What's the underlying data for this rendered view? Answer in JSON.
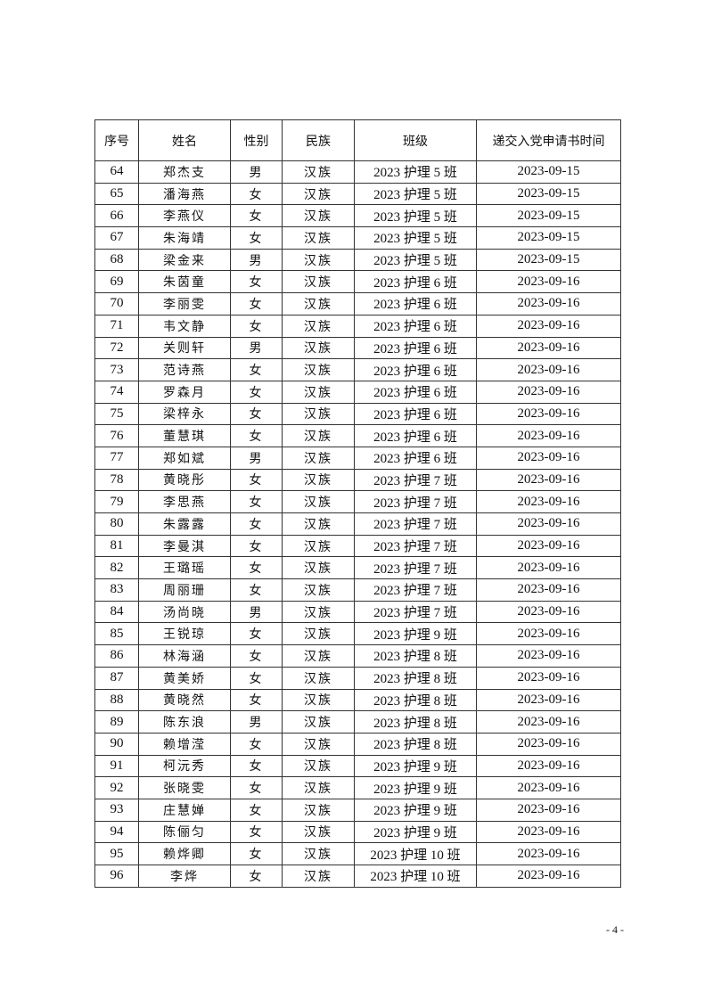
{
  "table": {
    "headers": [
      "序号",
      "姓名",
      "性别",
      "民族",
      "班级",
      "递交入党申请书时间"
    ],
    "rows": [
      [
        "64",
        "郑杰支",
        "男",
        "汉族",
        "2023 护理 5 班",
        "2023-09-15"
      ],
      [
        "65",
        "潘海燕",
        "女",
        "汉族",
        "2023 护理 5 班",
        "2023-09-15"
      ],
      [
        "66",
        "李燕仪",
        "女",
        "汉族",
        "2023 护理 5 班",
        "2023-09-15"
      ],
      [
        "67",
        "朱海靖",
        "女",
        "汉族",
        "2023 护理 5 班",
        "2023-09-15"
      ],
      [
        "68",
        "梁金来",
        "男",
        "汉族",
        "2023 护理 5 班",
        "2023-09-15"
      ],
      [
        "69",
        "朱茵童",
        "女",
        "汉族",
        "2023 护理 6 班",
        "2023-09-16"
      ],
      [
        "70",
        "李丽雯",
        "女",
        "汉族",
        "2023 护理 6 班",
        "2023-09-16"
      ],
      [
        "71",
        "韦文静",
        "女",
        "汉族",
        "2023 护理 6 班",
        "2023-09-16"
      ],
      [
        "72",
        "关则轩",
        "男",
        "汉族",
        "2023 护理 6 班",
        "2023-09-16"
      ],
      [
        "73",
        "范诗燕",
        "女",
        "汉族",
        "2023 护理 6 班",
        "2023-09-16"
      ],
      [
        "74",
        "罗森月",
        "女",
        "汉族",
        "2023 护理 6 班",
        "2023-09-16"
      ],
      [
        "75",
        "梁梓永",
        "女",
        "汉族",
        "2023 护理 6 班",
        "2023-09-16"
      ],
      [
        "76",
        "董慧琪",
        "女",
        "汉族",
        "2023 护理 6 班",
        "2023-09-16"
      ],
      [
        "77",
        "郑如斌",
        "男",
        "汉族",
        "2023 护理 6 班",
        "2023-09-16"
      ],
      [
        "78",
        "黄晓彤",
        "女",
        "汉族",
        "2023 护理 7 班",
        "2023-09-16"
      ],
      [
        "79",
        "李思燕",
        "女",
        "汉族",
        "2023 护理 7 班",
        "2023-09-16"
      ],
      [
        "80",
        "朱露露",
        "女",
        "汉族",
        "2023 护理 7 班",
        "2023-09-16"
      ],
      [
        "81",
        "李曼淇",
        "女",
        "汉族",
        "2023 护理 7 班",
        "2023-09-16"
      ],
      [
        "82",
        "王璐瑶",
        "女",
        "汉族",
        "2023 护理 7 班",
        "2023-09-16"
      ],
      [
        "83",
        "周丽珊",
        "女",
        "汉族",
        "2023 护理 7 班",
        "2023-09-16"
      ],
      [
        "84",
        "汤尚晓",
        "男",
        "汉族",
        "2023 护理 7 班",
        "2023-09-16"
      ],
      [
        "85",
        "王锐琼",
        "女",
        "汉族",
        "2023 护理 9 班",
        "2023-09-16"
      ],
      [
        "86",
        "林海涵",
        "女",
        "汉族",
        "2023 护理 8 班",
        "2023-09-16"
      ],
      [
        "87",
        "黄美娇",
        "女",
        "汉族",
        "2023 护理 8 班",
        "2023-09-16"
      ],
      [
        "88",
        "黄晓然",
        "女",
        "汉族",
        "2023 护理 8 班",
        "2023-09-16"
      ],
      [
        "89",
        "陈东浪",
        "男",
        "汉族",
        "2023 护理 8 班",
        "2023-09-16"
      ],
      [
        "90",
        "赖增滢",
        "女",
        "汉族",
        "2023 护理 8 班",
        "2023-09-16"
      ],
      [
        "91",
        "柯沅秀",
        "女",
        "汉族",
        "2023 护理 9 班",
        "2023-09-16"
      ],
      [
        "92",
        "张晓雯",
        "女",
        "汉族",
        "2023 护理 9 班",
        "2023-09-16"
      ],
      [
        "93",
        "庄慧婵",
        "女",
        "汉族",
        "2023 护理 9 班",
        "2023-09-16"
      ],
      [
        "94",
        "陈俪匀",
        "女",
        "汉族",
        "2023 护理 9 班",
        "2023-09-16"
      ],
      [
        "95",
        "赖烨卿",
        "女",
        "汉族",
        "2023 护理 10 班",
        "2023-09-16"
      ],
      [
        "96",
        "李烨",
        "女",
        "汉族",
        "2023 护理 10 班",
        "2023-09-16"
      ]
    ]
  },
  "footer": {
    "page_number": "- 4 -"
  }
}
